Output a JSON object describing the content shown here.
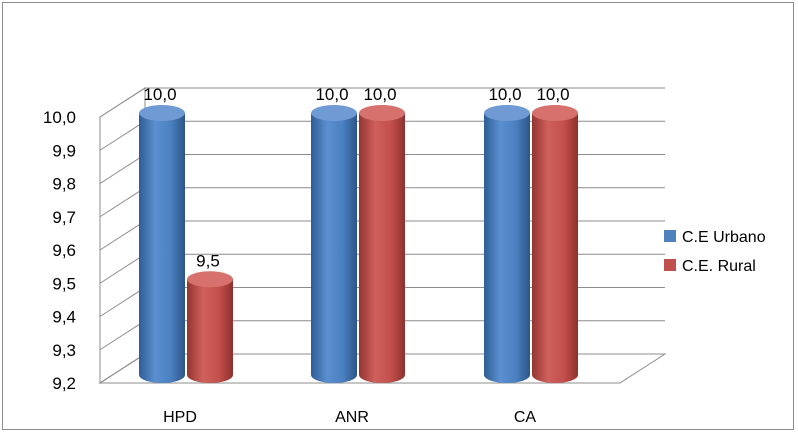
{
  "chart_data": {
    "type": "bar",
    "style": "3d-cylinder",
    "categories": [
      "HPD",
      "ANR",
      "CA"
    ],
    "series": [
      {
        "name": "C.E Urbano",
        "values": [
          10.0,
          10.0,
          10.0
        ],
        "labels": [
          "10,0",
          "10,0",
          "10,0"
        ],
        "color": "#4f81bd"
      },
      {
        "name": "C.E. Rural",
        "values": [
          9.5,
          10.0,
          10.0
        ],
        "labels": [
          "9,5",
          "10,0",
          "10,0"
        ],
        "color": "#c0504d"
      }
    ],
    "yticks": [
      "9,2",
      "9,3",
      "9,4",
      "9,5",
      "9,6",
      "9,7",
      "9,8",
      "9,9",
      "10,0"
    ],
    "ylim": [
      9.2,
      10.0
    ],
    "grid": true,
    "legend_position": "right"
  }
}
